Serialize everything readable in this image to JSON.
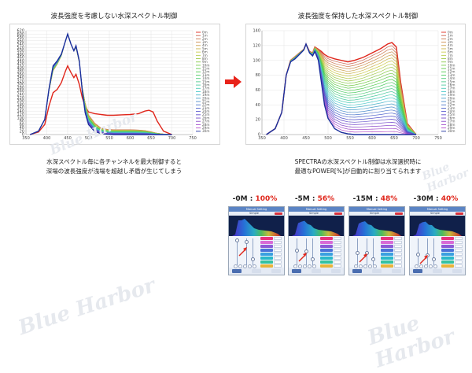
{
  "left": {
    "title": "波長強度を考慮しない水深スペクトル制御",
    "caption_lines": [
      "水深スペクトル毎に各チャンネルを最大制御すると",
      "深場の波長強度が浅場を超越し矛盾が生じてしまう"
    ]
  },
  "right": {
    "title": "波長強度を保持した水深スペクトル制御",
    "caption_lines": [
      "SPECTRAの水深スペクトル制御は水深選択時に",
      "最適なPOWER[%]が自動的に割り当てられます"
    ]
  },
  "watermark": "Blue Harbor",
  "colors": {
    "red": "#e0261b",
    "navy": "#1a2f9c",
    "arrow": "#e8231a"
  },
  "chart_data": [
    {
      "type": "line",
      "title": "波長強度を考慮しない水深スペクトル制御",
      "xlim": [
        350,
        750
      ],
      "ylim": [
        0,
        620
      ],
      "xticks": [
        350,
        400,
        450,
        500,
        550,
        600,
        650,
        700,
        750
      ],
      "yticks": [
        0,
        20,
        40,
        60,
        80,
        100,
        120,
        140,
        160,
        180,
        200,
        220,
        240,
        260,
        280,
        300,
        320,
        340,
        360,
        380,
        400,
        420,
        440,
        460,
        480,
        500,
        520,
        540,
        560,
        580,
        600,
        620
      ],
      "legend_position": "right",
      "legend": [
        "0m",
        "1m",
        "2m",
        "3m",
        "4m",
        "5m",
        "6m",
        "7m",
        "8m",
        "9m",
        "10m",
        "11m",
        "12m",
        "13m",
        "14m",
        "15m",
        "16m",
        "17m",
        "18m",
        "19m",
        "20m",
        "21m",
        "22m",
        "23m",
        "24m",
        "25m",
        "26m",
        "27m",
        "28m",
        "29m",
        "30m"
      ],
      "x": [
        360,
        380,
        395,
        405,
        415,
        425,
        435,
        445,
        450,
        458,
        465,
        470,
        478,
        485,
        492,
        500,
        515,
        530,
        545,
        560,
        580,
        600,
        620,
        635,
        645,
        655,
        665,
        680,
        700
      ],
      "series_top": [
        0,
        20,
        90,
        260,
        380,
        420,
        470,
        560,
        600,
        540,
        500,
        520,
        430,
        280,
        190,
        120,
        70,
        40,
        32,
        30,
        30,
        30,
        28,
        25,
        20,
        14,
        8,
        3,
        0
      ],
      "series_bottom": [
        0,
        20,
        90,
        270,
        410,
        440,
        480,
        560,
        600,
        540,
        500,
        530,
        440,
        260,
        130,
        60,
        18,
        6,
        2,
        0,
        0,
        0,
        0,
        0,
        0,
        0,
        0,
        0,
        0
      ],
      "series_first_red": [
        0,
        15,
        60,
        170,
        250,
        270,
        310,
        380,
        410,
        370,
        340,
        360,
        300,
        220,
        170,
        135,
        125,
        120,
        115,
        115,
        118,
        120,
        125,
        140,
        145,
        135,
        80,
        20,
        0
      ]
    },
    {
      "type": "line",
      "title": "波長強度を保持した水深スペクトル制御",
      "xlim": [
        350,
        750
      ],
      "ylim": [
        0,
        140
      ],
      "xticks": [
        350,
        400,
        450,
        500,
        550,
        600,
        650,
        700,
        750
      ],
      "yticks": [
        0,
        20,
        40,
        60,
        80,
        100,
        120,
        140
      ],
      "legend_position": "right",
      "legend": [
        "0m",
        "1m",
        "2m",
        "3m",
        "4m",
        "5m",
        "6m",
        "7m",
        "8m",
        "9m",
        "10m",
        "11m",
        "12m",
        "13m",
        "14m",
        "15m",
        "16m",
        "17m",
        "18m",
        "19m",
        "20m",
        "21m",
        "22m",
        "23m",
        "24m",
        "25m",
        "26m",
        "27m",
        "28m",
        "29m",
        "30m"
      ],
      "x": [
        360,
        380,
        395,
        405,
        415,
        425,
        435,
        445,
        450,
        458,
        465,
        470,
        478,
        485,
        492,
        500,
        515,
        530,
        545,
        560,
        580,
        600,
        620,
        635,
        645,
        655,
        665,
        680,
        700
      ],
      "series_top": [
        0,
        8,
        30,
        80,
        100,
        105,
        110,
        115,
        122,
        112,
        110,
        118,
        115,
        112,
        108,
        105,
        102,
        100,
        98,
        100,
        104,
        110,
        116,
        122,
        124,
        118,
        70,
        15,
        0
      ],
      "series_bottom": [
        0,
        8,
        30,
        80,
        98,
        102,
        108,
        114,
        122,
        110,
        106,
        112,
        100,
        70,
        40,
        22,
        8,
        3,
        1,
        0,
        0,
        0,
        0,
        0,
        0,
        0,
        0,
        0,
        0
      ]
    }
  ],
  "phones": [
    {
      "label": "-0M : ",
      "pct": "100%",
      "header": "Manual Setting",
      "mode": "Simple"
    },
    {
      "label": "-5M : ",
      "pct": "56%",
      "header": "Manual Setting",
      "mode": "Simple"
    },
    {
      "label": "-15M : ",
      "pct": "48%",
      "header": "Manual Setting",
      "mode": "Simple"
    },
    {
      "label": "-30M : ",
      "pct": "40%",
      "header": "Manual Setting",
      "mode": "Simple"
    }
  ]
}
